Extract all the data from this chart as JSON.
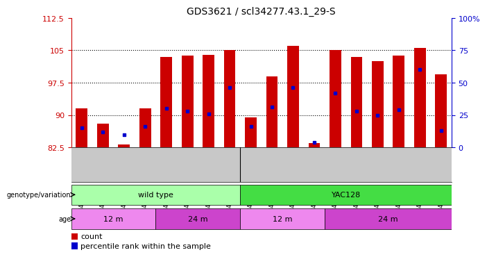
{
  "title": "GDS3621 / scl34277.43.1_29-S",
  "samples": [
    "GSM491327",
    "GSM491328",
    "GSM491329",
    "GSM491330",
    "GSM491336",
    "GSM491337",
    "GSM491338",
    "GSM491339",
    "GSM491331",
    "GSM491332",
    "GSM491333",
    "GSM491334",
    "GSM491335",
    "GSM491340",
    "GSM491341",
    "GSM491342",
    "GSM491343",
    "GSM491344"
  ],
  "counts": [
    91.5,
    88.0,
    83.2,
    91.5,
    103.5,
    103.8,
    104.0,
    105.0,
    89.5,
    99.0,
    106.0,
    83.5,
    105.0,
    103.5,
    102.5,
    103.8,
    105.5,
    99.5
  ],
  "percentile_ranks": [
    15,
    12,
    10,
    16,
    30,
    28,
    26,
    46,
    16,
    31,
    46,
    4,
    42,
    28,
    25,
    29,
    60,
    13
  ],
  "ymin": 82.5,
  "ymax": 112.5,
  "yticks": [
    82.5,
    90.0,
    97.5,
    105.0,
    112.5
  ],
  "ytick_labels": [
    "82.5",
    "90",
    "97.5",
    "105",
    "112.5"
  ],
  "right_yticks": [
    0,
    25,
    50,
    75,
    100
  ],
  "right_ytick_labels": [
    "0",
    "25",
    "50",
    "75",
    "100%"
  ],
  "bar_color": "#cc0000",
  "dot_color": "#0000cc",
  "tick_color_left": "#cc0000",
  "tick_color_right": "#0000cc",
  "genotype_groups": [
    {
      "label": "wild type",
      "start": 0,
      "end": 8,
      "color": "#aaffaa"
    },
    {
      "label": "YAC128",
      "start": 8,
      "end": 18,
      "color": "#44dd44"
    }
  ],
  "age_groups": [
    {
      "label": "12 m",
      "start": 0,
      "end": 4,
      "color": "#ee88ee"
    },
    {
      "label": "24 m",
      "start": 4,
      "end": 8,
      "color": "#cc44cc"
    },
    {
      "label": "12 m",
      "start": 8,
      "end": 12,
      "color": "#ee88ee"
    },
    {
      "label": "24 m",
      "start": 12,
      "end": 18,
      "color": "#cc44cc"
    }
  ],
  "legend_count_color": "#cc0000",
  "legend_dot_color": "#0000cc",
  "bar_width": 0.55,
  "xtick_bg": "#c8c8c8"
}
